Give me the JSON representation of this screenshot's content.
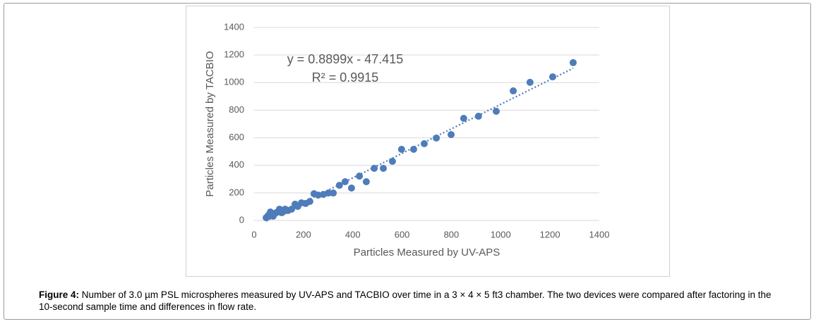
{
  "chart_data": {
    "type": "scatter",
    "x_label": "Particles Measured by UV-APS",
    "y_label": "Particles Measured by TACBIO",
    "xlim": [
      0,
      1400
    ],
    "xticks": [
      0,
      200,
      400,
      600,
      800,
      1000,
      1200,
      1400
    ],
    "ylim": [
      0,
      1400
    ],
    "yticks": [
      0,
      200,
      400,
      600,
      800,
      1000,
      1200,
      1400
    ],
    "grid": true,
    "color": "#4f7cba",
    "x": [
      1294,
      1211,
      1119,
      1051,
      982,
      910,
      850,
      799,
      739,
      690,
      647,
      598,
      561,
      524,
      487,
      455,
      427,
      395,
      369,
      346,
      321,
      301,
      281,
      260,
      243,
      226,
      209,
      192,
      177,
      166,
      152,
      137,
      126,
      112,
      103,
      89,
      74,
      66,
      57,
      49,
      77,
      95,
      120
    ],
    "values": [
      1145,
      1042,
      1002,
      940,
      792,
      756,
      741,
      623,
      598,
      557,
      516,
      516,
      429,
      378,
      378,
      281,
      322,
      235,
      281,
      255,
      199,
      199,
      189,
      184,
      194,
      138,
      123,
      128,
      102,
      118,
      82,
      72,
      82,
      56,
      82,
      56,
      46,
      61,
      36,
      20,
      31,
      61,
      66
    ],
    "trendline": {
      "slope": 0.8899,
      "intercept": -47.415,
      "equation": "y = 0.8899x - 47.415",
      "r2_label": "R² = 0.9915"
    }
  },
  "caption": {
    "label": "Figure 4:",
    "text": "Number of 3.0 µm PSL microspheres measured by UV-APS and TACBIO over time in a 3 × 4 × 5 ft3 chamber. The two devices were compared after factoring in the 10-second sample time and differences in flow rate."
  }
}
